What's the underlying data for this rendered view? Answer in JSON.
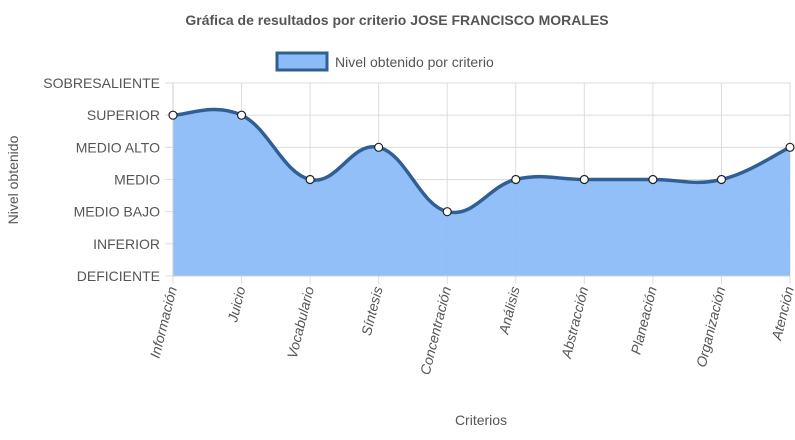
{
  "chart_data": {
    "type": "area",
    "title": "Gráfica de resultados por criterio JOSE FRANCISCO MORALES",
    "xlabel": "Criterios",
    "ylabel": "Nivel obtenido",
    "categories": [
      "Información",
      "Juicio",
      "Vocabulario",
      "Síntesis",
      "Concentración",
      "Análisis",
      "Abstracción",
      "Planeación",
      "Organización",
      "Atención"
    ],
    "levels": [
      "DEFICIENTE",
      "INFERIOR",
      "MEDIO BAJO",
      "MEDIO",
      "MEDIO ALTO",
      "SUPERIOR",
      "SOBRESALIENTE"
    ],
    "series": [
      {
        "name": "Nivel obtenido por criterio",
        "values": [
          "SUPERIOR",
          "SUPERIOR",
          "MEDIO",
          "MEDIO ALTO",
          "MEDIO BAJO",
          "MEDIO",
          "MEDIO",
          "MEDIO",
          "MEDIO",
          "MEDIO ALTO"
        ]
      }
    ],
    "legend_position": "top",
    "grid": true,
    "colors": {
      "line": "#2f5f94",
      "fill": "#8cbcf8",
      "grid": "#dcdcdc",
      "text": "#555555"
    }
  }
}
